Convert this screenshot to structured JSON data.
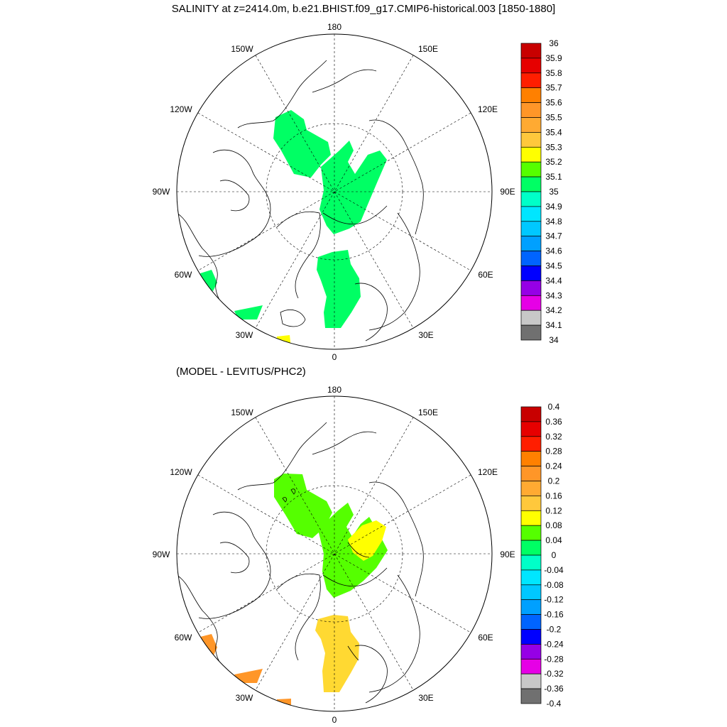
{
  "title": "SALINITY at z=2414.0m, b.e21.BHIST.f09_g17.CMIP6-historical.003 [1850-1880]",
  "subtitle": "(MODEL - LEVITUS/PHC2)",
  "longitude_labels": {
    "top": "180",
    "upper_left": "150W",
    "upper_right": "150E",
    "mid_left": "120W",
    "mid_right": "120E",
    "left": "90W",
    "right": "90E",
    "lower_left": "60W",
    "lower_right": "60E",
    "bottom_left": "30W",
    "bottom_right": "30E",
    "bottom": "0"
  },
  "panels": [
    {
      "name": "salinity",
      "colorbar": {
        "labels": [
          "36",
          "35.9",
          "35.8",
          "35.7",
          "35.6",
          "35.5",
          "35.4",
          "35.3",
          "35.2",
          "35.1",
          "35",
          "34.9",
          "34.8",
          "34.7",
          "34.6",
          "34.5",
          "34.4",
          "34.3",
          "34.2",
          "34.1",
          "34"
        ],
        "colors": [
          "#c80000",
          "#e60000",
          "#ff1e00",
          "#ff8000",
          "#ff9628",
          "#ffaa32",
          "#ffc83c",
          "#ffff00",
          "#55ff00",
          "#00ff64",
          "#00ffc8",
          "#00e6ff",
          "#00c8ff",
          "#00a0ff",
          "#0064ff",
          "#0000ff",
          "#9600e6",
          "#e600e6",
          "#c8c8c8",
          "#707070"
        ]
      },
      "fill_colors": {
        "main": "#00ff64",
        "bering": "#00ff64",
        "bottom_spot": "#ffff00"
      }
    },
    {
      "name": "difference",
      "colorbar": {
        "labels": [
          "0.4",
          "0.36",
          "0.32",
          "0.28",
          "0.24",
          "0.2",
          "0.16",
          "0.12",
          "0.08",
          "0.04",
          "0",
          "-0.04",
          "-0.08",
          "-0.12",
          "-0.16",
          "-0.2",
          "-0.24",
          "-0.28",
          "-0.32",
          "-0.36",
          "-0.4"
        ],
        "colors": [
          "#c80000",
          "#e60000",
          "#ff1e00",
          "#ff8000",
          "#ff9628",
          "#ffaa32",
          "#ffc83c",
          "#ffff00",
          "#55ff00",
          "#00ff64",
          "#00ffc8",
          "#00e6ff",
          "#00c8ff",
          "#00a0ff",
          "#0064ff",
          "#0000ff",
          "#9600e6",
          "#e600e6",
          "#c8c8c8",
          "#707070"
        ]
      },
      "fill_colors": {
        "main": "#55ff00",
        "yellow_patch": "#ffff00",
        "fram": "#ffd932",
        "atlantic": "#ff9628"
      }
    }
  ]
}
